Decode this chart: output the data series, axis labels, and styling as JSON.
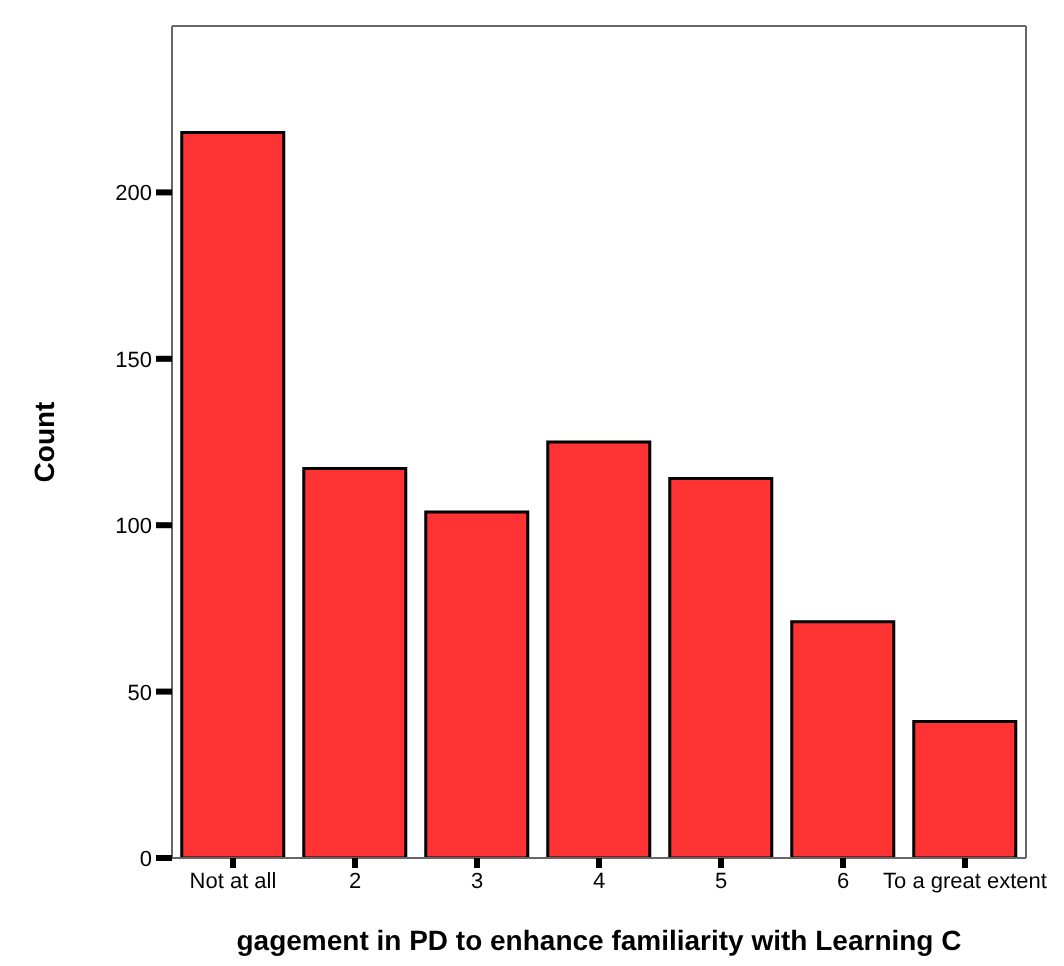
{
  "chart_data": {
    "type": "bar",
    "xlabel": "gagement in PD to enhance familiarity with Learning C",
    "ylabel": "Count",
    "categories": [
      "Not at all",
      "2",
      "3",
      "4",
      "5",
      "6",
      "To a great extent"
    ],
    "values": [
      218,
      117,
      104,
      125,
      114,
      71,
      41
    ],
    "color": "#ff3333",
    "ylim": [
      0,
      250
    ],
    "yticks": [
      0,
      50,
      100,
      150,
      200
    ]
  }
}
